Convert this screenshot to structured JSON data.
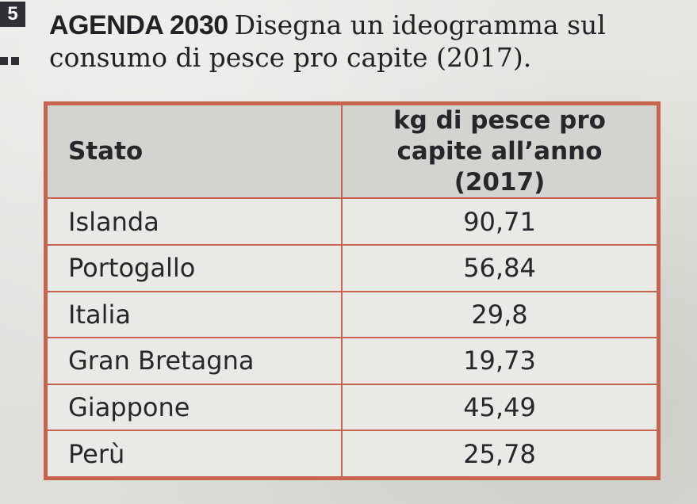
{
  "exercise": {
    "number": "5",
    "level": "▪▪"
  },
  "title": {
    "tag": "AGENDA 2030",
    "text": "Disegna un ideogramma sul consumo di pesce pro capite (2017)."
  },
  "table": {
    "headers": {
      "state": "Stato",
      "kg": "kg di pesce pro capite all’anno (2017)"
    },
    "rows": [
      {
        "state": "Islanda",
        "kg": "90,71"
      },
      {
        "state": "Portogallo",
        "kg": "56,84"
      },
      {
        "state": "Italia",
        "kg": "29,8"
      },
      {
        "state": "Gran Bretagna",
        "kg": "19,73"
      },
      {
        "state": "Giappone",
        "kg": "45,49"
      },
      {
        "state": "Perù",
        "kg": "25,78"
      }
    ]
  },
  "colors": {
    "border": "#c8634f",
    "header_bg": "#d2d4cf",
    "ink": "#26262b"
  }
}
